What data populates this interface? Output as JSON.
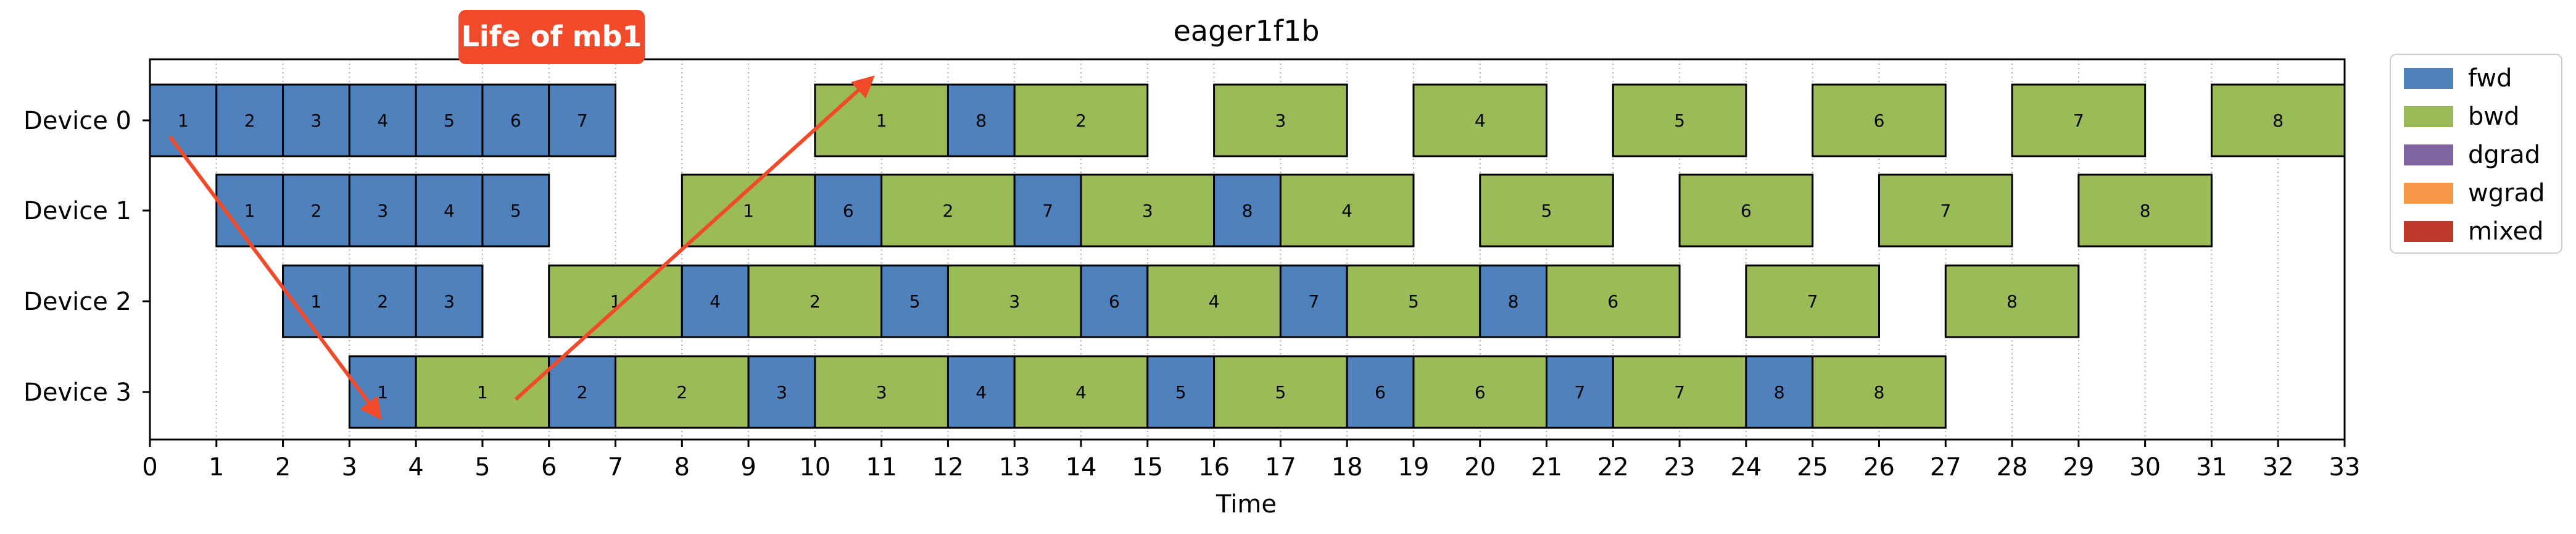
{
  "chart_data": {
    "type": "gantt",
    "title": "eager1f1b",
    "xlabel": "Time",
    "ylabel": "",
    "xlim": [
      0,
      33
    ],
    "x_ticks": [
      0,
      1,
      2,
      3,
      4,
      5,
      6,
      7,
      8,
      9,
      10,
      11,
      12,
      13,
      14,
      15,
      16,
      17,
      18,
      19,
      20,
      21,
      22,
      23,
      24,
      25,
      26,
      27,
      28,
      29,
      30,
      31,
      32,
      33
    ],
    "grid": "vertical dotted",
    "devices": [
      "Device 0",
      "Device 1",
      "Device 2",
      "Device 3"
    ],
    "legend": {
      "placement": "outside-top-right",
      "entries": [
        {
          "label": "fwd",
          "color": "#4f81bd"
        },
        {
          "label": "bwd",
          "color": "#9bbb59"
        },
        {
          "label": "dgrad",
          "color": "#8064a2"
        },
        {
          "label": "wgrad",
          "color": "#f79646"
        },
        {
          "label": "mixed",
          "color": "#c0392b"
        }
      ]
    },
    "tasks": [
      {
        "device": 0,
        "type": "fwd",
        "mb": "1",
        "start": 0,
        "end": 1
      },
      {
        "device": 0,
        "type": "fwd",
        "mb": "2",
        "start": 1,
        "end": 2
      },
      {
        "device": 0,
        "type": "fwd",
        "mb": "3",
        "start": 2,
        "end": 3
      },
      {
        "device": 0,
        "type": "fwd",
        "mb": "4",
        "start": 3,
        "end": 4
      },
      {
        "device": 0,
        "type": "fwd",
        "mb": "5",
        "start": 4,
        "end": 5
      },
      {
        "device": 0,
        "type": "fwd",
        "mb": "6",
        "start": 5,
        "end": 6
      },
      {
        "device": 0,
        "type": "fwd",
        "mb": "7",
        "start": 6,
        "end": 7
      },
      {
        "device": 0,
        "type": "bwd",
        "mb": "1",
        "start": 10,
        "end": 12
      },
      {
        "device": 0,
        "type": "fwd",
        "mb": "8",
        "start": 12,
        "end": 13
      },
      {
        "device": 0,
        "type": "bwd",
        "mb": "2",
        "start": 13,
        "end": 15
      },
      {
        "device": 0,
        "type": "bwd",
        "mb": "3",
        "start": 16,
        "end": 18
      },
      {
        "device": 0,
        "type": "bwd",
        "mb": "4",
        "start": 19,
        "end": 21
      },
      {
        "device": 0,
        "type": "bwd",
        "mb": "5",
        "start": 22,
        "end": 24
      },
      {
        "device": 0,
        "type": "bwd",
        "mb": "6",
        "start": 25,
        "end": 27
      },
      {
        "device": 0,
        "type": "bwd",
        "mb": "7",
        "start": 28,
        "end": 30
      },
      {
        "device": 0,
        "type": "bwd",
        "mb": "8",
        "start": 31,
        "end": 33
      },
      {
        "device": 1,
        "type": "fwd",
        "mb": "1",
        "start": 1,
        "end": 2
      },
      {
        "device": 1,
        "type": "fwd",
        "mb": "2",
        "start": 2,
        "end": 3
      },
      {
        "device": 1,
        "type": "fwd",
        "mb": "3",
        "start": 3,
        "end": 4
      },
      {
        "device": 1,
        "type": "fwd",
        "mb": "4",
        "start": 4,
        "end": 5
      },
      {
        "device": 1,
        "type": "fwd",
        "mb": "5",
        "start": 5,
        "end": 6
      },
      {
        "device": 1,
        "type": "bwd",
        "mb": "1",
        "start": 8,
        "end": 10
      },
      {
        "device": 1,
        "type": "fwd",
        "mb": "6",
        "start": 10,
        "end": 11
      },
      {
        "device": 1,
        "type": "bwd",
        "mb": "2",
        "start": 11,
        "end": 13
      },
      {
        "device": 1,
        "type": "fwd",
        "mb": "7",
        "start": 13,
        "end": 14
      },
      {
        "device": 1,
        "type": "bwd",
        "mb": "3",
        "start": 14,
        "end": 16
      },
      {
        "device": 1,
        "type": "fwd",
        "mb": "8",
        "start": 16,
        "end": 17
      },
      {
        "device": 1,
        "type": "bwd",
        "mb": "4",
        "start": 17,
        "end": 19
      },
      {
        "device": 1,
        "type": "bwd",
        "mb": "5",
        "start": 20,
        "end": 22
      },
      {
        "device": 1,
        "type": "bwd",
        "mb": "6",
        "start": 23,
        "end": 25
      },
      {
        "device": 1,
        "type": "bwd",
        "mb": "7",
        "start": 26,
        "end": 28
      },
      {
        "device": 1,
        "type": "bwd",
        "mb": "8",
        "start": 29,
        "end": 31
      },
      {
        "device": 2,
        "type": "fwd",
        "mb": "1",
        "start": 2,
        "end": 3
      },
      {
        "device": 2,
        "type": "fwd",
        "mb": "2",
        "start": 3,
        "end": 4
      },
      {
        "device": 2,
        "type": "fwd",
        "mb": "3",
        "start": 4,
        "end": 5
      },
      {
        "device": 2,
        "type": "bwd",
        "mb": "1",
        "start": 6,
        "end": 8
      },
      {
        "device": 2,
        "type": "fwd",
        "mb": "4",
        "start": 8,
        "end": 9
      },
      {
        "device": 2,
        "type": "bwd",
        "mb": "2",
        "start": 9,
        "end": 11
      },
      {
        "device": 2,
        "type": "fwd",
        "mb": "5",
        "start": 11,
        "end": 12
      },
      {
        "device": 2,
        "type": "bwd",
        "mb": "3",
        "start": 12,
        "end": 14
      },
      {
        "device": 2,
        "type": "fwd",
        "mb": "6",
        "start": 14,
        "end": 15
      },
      {
        "device": 2,
        "type": "bwd",
        "mb": "4",
        "start": 15,
        "end": 17
      },
      {
        "device": 2,
        "type": "fwd",
        "mb": "7",
        "start": 17,
        "end": 18
      },
      {
        "device": 2,
        "type": "bwd",
        "mb": "5",
        "start": 18,
        "end": 20
      },
      {
        "device": 2,
        "type": "fwd",
        "mb": "8",
        "start": 20,
        "end": 21
      },
      {
        "device": 2,
        "type": "bwd",
        "mb": "6",
        "start": 21,
        "end": 23
      },
      {
        "device": 2,
        "type": "bwd",
        "mb": "7",
        "start": 24,
        "end": 26
      },
      {
        "device": 2,
        "type": "bwd",
        "mb": "8",
        "start": 27,
        "end": 29
      },
      {
        "device": 3,
        "type": "fwd",
        "mb": "1",
        "start": 3,
        "end": 4
      },
      {
        "device": 3,
        "type": "bwd",
        "mb": "1",
        "start": 4,
        "end": 6
      },
      {
        "device": 3,
        "type": "fwd",
        "mb": "2",
        "start": 6,
        "end": 7
      },
      {
        "device": 3,
        "type": "bwd",
        "mb": "2",
        "start": 7,
        "end": 9
      },
      {
        "device": 3,
        "type": "fwd",
        "mb": "3",
        "start": 9,
        "end": 10
      },
      {
        "device": 3,
        "type": "bwd",
        "mb": "3",
        "start": 10,
        "end": 12
      },
      {
        "device": 3,
        "type": "fwd",
        "mb": "4",
        "start": 12,
        "end": 13
      },
      {
        "device": 3,
        "type": "bwd",
        "mb": "4",
        "start": 13,
        "end": 15
      },
      {
        "device": 3,
        "type": "fwd",
        "mb": "5",
        "start": 15,
        "end": 16
      },
      {
        "device": 3,
        "type": "bwd",
        "mb": "5",
        "start": 16,
        "end": 18
      },
      {
        "device": 3,
        "type": "fwd",
        "mb": "6",
        "start": 18,
        "end": 19
      },
      {
        "device": 3,
        "type": "bwd",
        "mb": "6",
        "start": 19,
        "end": 21
      },
      {
        "device": 3,
        "type": "fwd",
        "mb": "7",
        "start": 21,
        "end": 22
      },
      {
        "device": 3,
        "type": "bwd",
        "mb": "7",
        "start": 22,
        "end": 24
      },
      {
        "device": 3,
        "type": "fwd",
        "mb": "8",
        "start": 24,
        "end": 25
      },
      {
        "device": 3,
        "type": "bwd",
        "mb": "8",
        "start": 25,
        "end": 27
      }
    ],
    "annotation": {
      "text": "Life of mb1",
      "color": "#f04a2a",
      "arrows": [
        {
          "from": {
            "time": 0.3,
            "device": 0
          },
          "to": {
            "time": 3.45,
            "device": 3
          }
        },
        {
          "from": {
            "time": 5.5,
            "device": 3
          },
          "to": {
            "time": 10.85,
            "device": 0
          }
        }
      ]
    }
  }
}
